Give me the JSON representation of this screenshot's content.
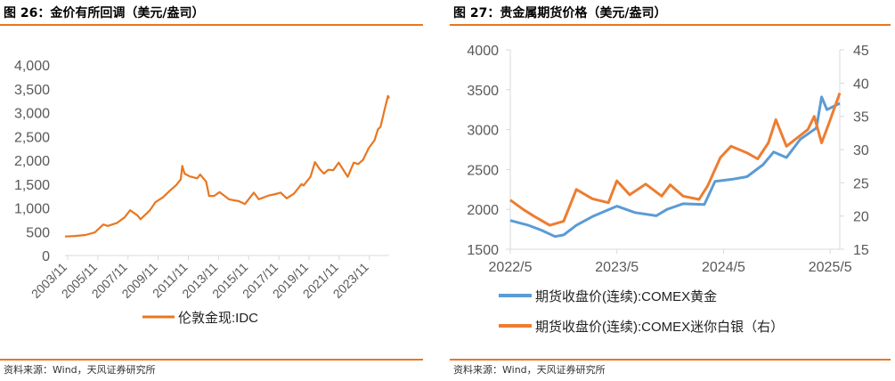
{
  "colors": {
    "accent": "#E87722",
    "gold": "#5B9BD5",
    "silver": "#ED7D31",
    "axis": "#D9D9D9",
    "text": "#595959"
  },
  "left": {
    "title": "图 26：金价有所回调（美元/盎司）",
    "source": "资料来源：Wind，天风证券研究所"
  },
  "right": {
    "title": "图 27：贵金属期货价格（美元/盎司）",
    "source": "资料来源：Wind，天风证券研究所"
  },
  "chart_data": [
    {
      "type": "line",
      "title": "金价有所回调（美元/盎司）",
      "ylim": [
        0,
        4000
      ],
      "yticks": [
        "0",
        "500",
        "1,000",
        "1,500",
        "2,000",
        "2,500",
        "3,000",
        "3,500",
        "4,000"
      ],
      "xlim": [
        2003.83,
        2025.58
      ],
      "xticks": [
        "2003/11",
        "2005/11",
        "2007/11",
        "2009/11",
        "2011/11",
        "2013/11",
        "2015/11",
        "2017/11",
        "2019/11",
        "2021/11",
        "2023/11"
      ],
      "series": [
        {
          "name": "伦敦金现:IDC",
          "x": [
            2003.83,
            2004.5,
            2005.2,
            2005.83,
            2006.4,
            2006.7,
            2007.3,
            2007.83,
            2008.2,
            2008.7,
            2008.9,
            2009.5,
            2009.9,
            2010.4,
            2010.83,
            2011.3,
            2011.6,
            2011.7,
            2011.85,
            2012.2,
            2012.7,
            2012.9,
            2013.3,
            2013.5,
            2013.83,
            2014.2,
            2014.83,
            2015.5,
            2015.9,
            2016.5,
            2016.83,
            2017.5,
            2017.83,
            2018.3,
            2018.7,
            2019.2,
            2019.7,
            2019.83,
            2020.3,
            2020.6,
            2020.9,
            2021.2,
            2021.5,
            2021.83,
            2022.2,
            2022.8,
            2023.2,
            2023.5,
            2023.83,
            2024.2,
            2024.6,
            2024.83,
            2025.0,
            2025.3,
            2025.5,
            2025.58
          ],
          "values": [
            398,
            410,
            430,
            485,
            650,
            620,
            680,
            800,
            950,
            840,
            760,
            940,
            1120,
            1220,
            1350,
            1480,
            1600,
            1880,
            1720,
            1660,
            1620,
            1700,
            1550,
            1250,
            1250,
            1330,
            1180,
            1140,
            1080,
            1320,
            1180,
            1260,
            1280,
            1320,
            1200,
            1300,
            1500,
            1470,
            1650,
            1960,
            1820,
            1720,
            1800,
            1790,
            1950,
            1650,
            1950,
            1920,
            2010,
            2250,
            2420,
            2650,
            2700,
            3100,
            3350,
            3300
          ]
        }
      ],
      "legend": "bottom"
    },
    {
      "type": "line",
      "title": "贵金属期货价格（美元/盎司）",
      "ylim_left": [
        1500,
        4000
      ],
      "ylim_right": [
        15,
        45
      ],
      "yticks_left": [
        "1500",
        "2000",
        "2500",
        "3000",
        "3500",
        "4000"
      ],
      "yticks_right": [
        "15",
        "20",
        "25",
        "30",
        "35",
        "40",
        "45"
      ],
      "xlim": [
        2022.33,
        2025.42
      ],
      "xticks": [
        "2022/5",
        "2023/5",
        "2024/5",
        "2025/5"
      ],
      "series": [
        {
          "name": "期货收盘价(连续):COMEX黄金",
          "axis": "left",
          "x": [
            2022.33,
            2022.5,
            2022.62,
            2022.75,
            2022.83,
            2022.95,
            2023.1,
            2023.33,
            2023.5,
            2023.7,
            2023.8,
            2023.95,
            2024.15,
            2024.25,
            2024.42,
            2024.55,
            2024.7,
            2024.8,
            2024.92,
            2025.05,
            2025.2,
            2025.25,
            2025.3,
            2025.42
          ],
          "values": [
            1860,
            1800,
            1740,
            1660,
            1680,
            1800,
            1910,
            2040,
            1960,
            1920,
            2000,
            2070,
            2060,
            2350,
            2380,
            2410,
            2560,
            2720,
            2650,
            2880,
            3020,
            3410,
            3250,
            3330
          ]
        },
        {
          "name": "期货收盘价(连续):COMEX迷你白银（右）",
          "axis": "right",
          "x": [
            2022.33,
            2022.45,
            2022.55,
            2022.7,
            2022.83,
            2022.95,
            2023.1,
            2023.25,
            2023.33,
            2023.45,
            2023.6,
            2023.75,
            2023.83,
            2023.95,
            2024.1,
            2024.18,
            2024.3,
            2024.4,
            2024.55,
            2024.65,
            2024.75,
            2024.82,
            2024.92,
            2025.0,
            2025.12,
            2025.18,
            2025.25,
            2025.32,
            2025.42
          ],
          "values": [
            22.4,
            21.0,
            20.0,
            18.6,
            19.2,
            24.0,
            22.6,
            22.0,
            25.3,
            23.2,
            24.8,
            23.0,
            24.7,
            23.0,
            22.5,
            24.5,
            28.8,
            30.5,
            29.5,
            28.6,
            31.0,
            34.5,
            30.5,
            31.5,
            33.0,
            35.0,
            31.0,
            34.0,
            38.5
          ]
        }
      ],
      "legend": "bottom"
    }
  ]
}
